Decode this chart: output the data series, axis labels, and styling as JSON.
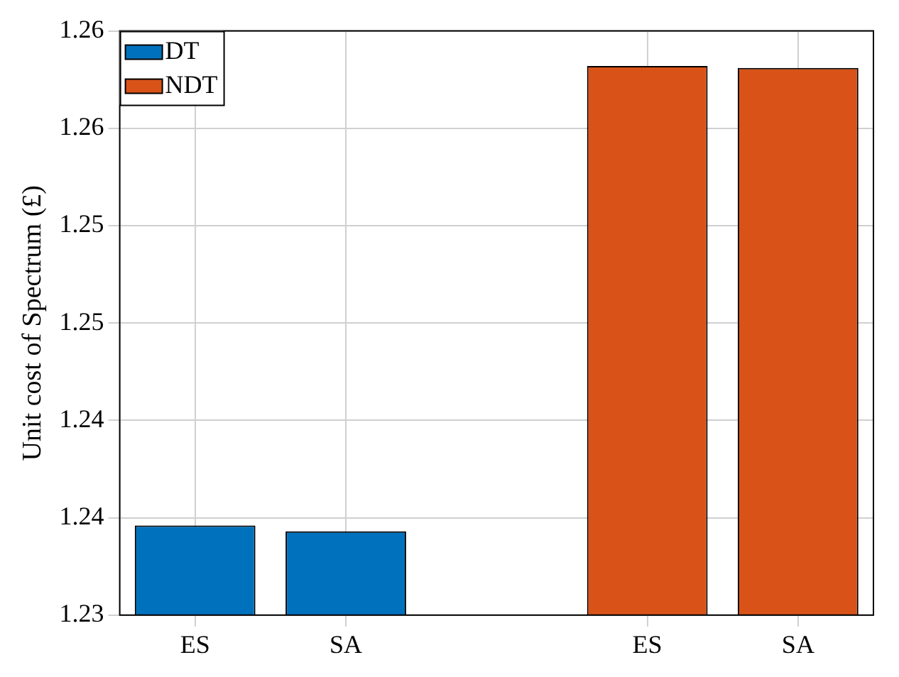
{
  "chart_data": {
    "type": "bar",
    "ylabel": "Unit cost of Spectrum (£)",
    "categories": [
      "ES",
      "SA",
      null,
      "ES",
      "SA"
    ],
    "series": [
      {
        "name": "DT",
        "color": "#0072bd",
        "values": [
          1.2346,
          1.2343,
          null,
          null,
          null
        ]
      },
      {
        "name": "NDT",
        "color": "#d95319",
        "values": [
          null,
          null,
          null,
          1.2582,
          1.2581
        ]
      }
    ],
    "ylim": [
      1.23,
      1.26
    ],
    "yticks": [
      {
        "value": 1.23,
        "label": "1.23"
      },
      {
        "value": 1.235,
        "label": "1.24"
      },
      {
        "value": 1.24,
        "label": "1.24"
      },
      {
        "value": 1.245,
        "label": "1.25"
      },
      {
        "value": 1.25,
        "label": "1.25"
      },
      {
        "value": 1.255,
        "label": "1.26"
      },
      {
        "value": 1.26,
        "label": "1.26"
      }
    ],
    "grid": true,
    "legend": "top left"
  }
}
